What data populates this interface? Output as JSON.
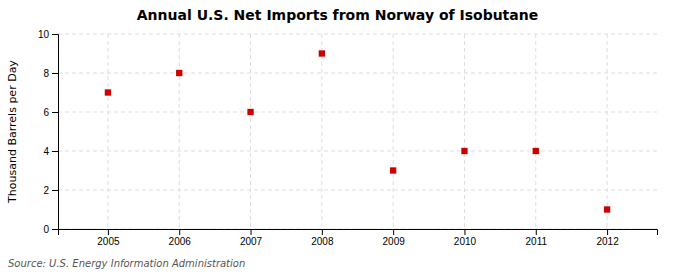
{
  "chart_data": {
    "type": "scatter",
    "title": "Annual U.S. Net Imports from Norway of Isobutane",
    "ylabel": "Thousand Barrels per Day",
    "source": "Source: U.S. Energy Information Administration",
    "x": [
      2005,
      2006,
      2007,
      2008,
      2009,
      2010,
      2011,
      2012
    ],
    "values": [
      7,
      8,
      6,
      9,
      3,
      4,
      4,
      1
    ],
    "xlim": [
      2004.3,
      2012.7
    ],
    "ylim": [
      0,
      10
    ],
    "xticks": [
      2005,
      2006,
      2007,
      2008,
      2009,
      2010,
      2011,
      2012
    ],
    "yticks": [
      0,
      2,
      4,
      6,
      8,
      10
    ],
    "color": "#cc0000",
    "marker": "square",
    "grid": true
  }
}
